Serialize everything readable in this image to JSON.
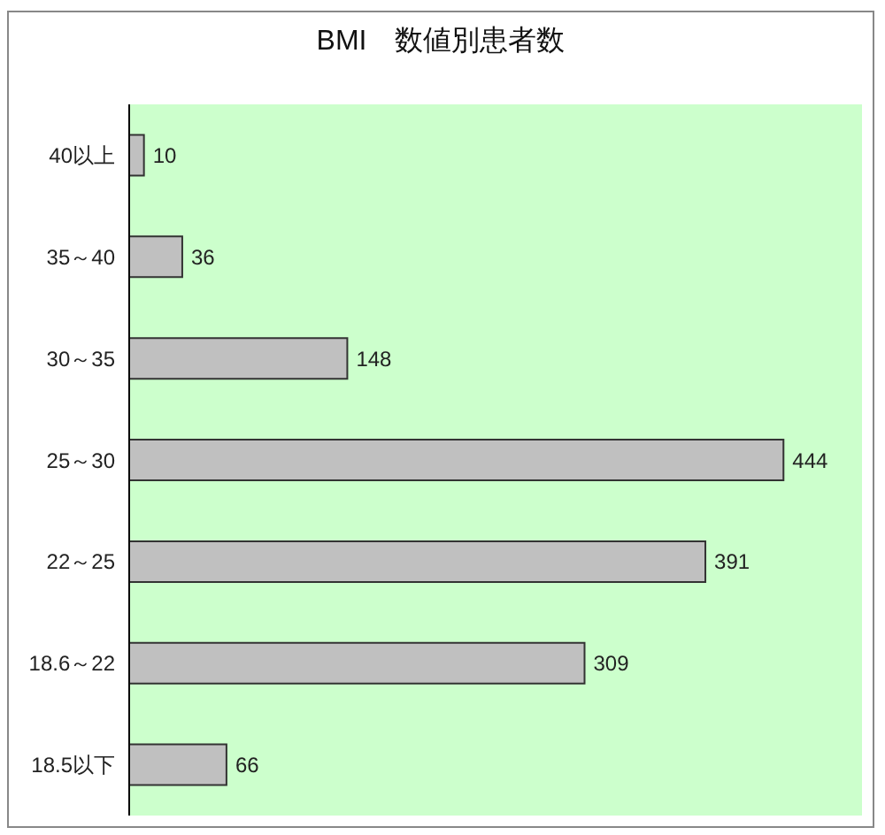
{
  "chart_data": {
    "type": "bar",
    "orientation": "horizontal",
    "title": "BMI　数値別患者数",
    "categories": [
      "40以上",
      "35～40",
      "30～35",
      "25～30",
      "22～25",
      "18.6～22",
      "18.5以下"
    ],
    "values": [
      10,
      36,
      148,
      444,
      391,
      309,
      66
    ],
    "color": "#c0c0c0",
    "data_labels": true,
    "tick_labels": "y"
  }
}
